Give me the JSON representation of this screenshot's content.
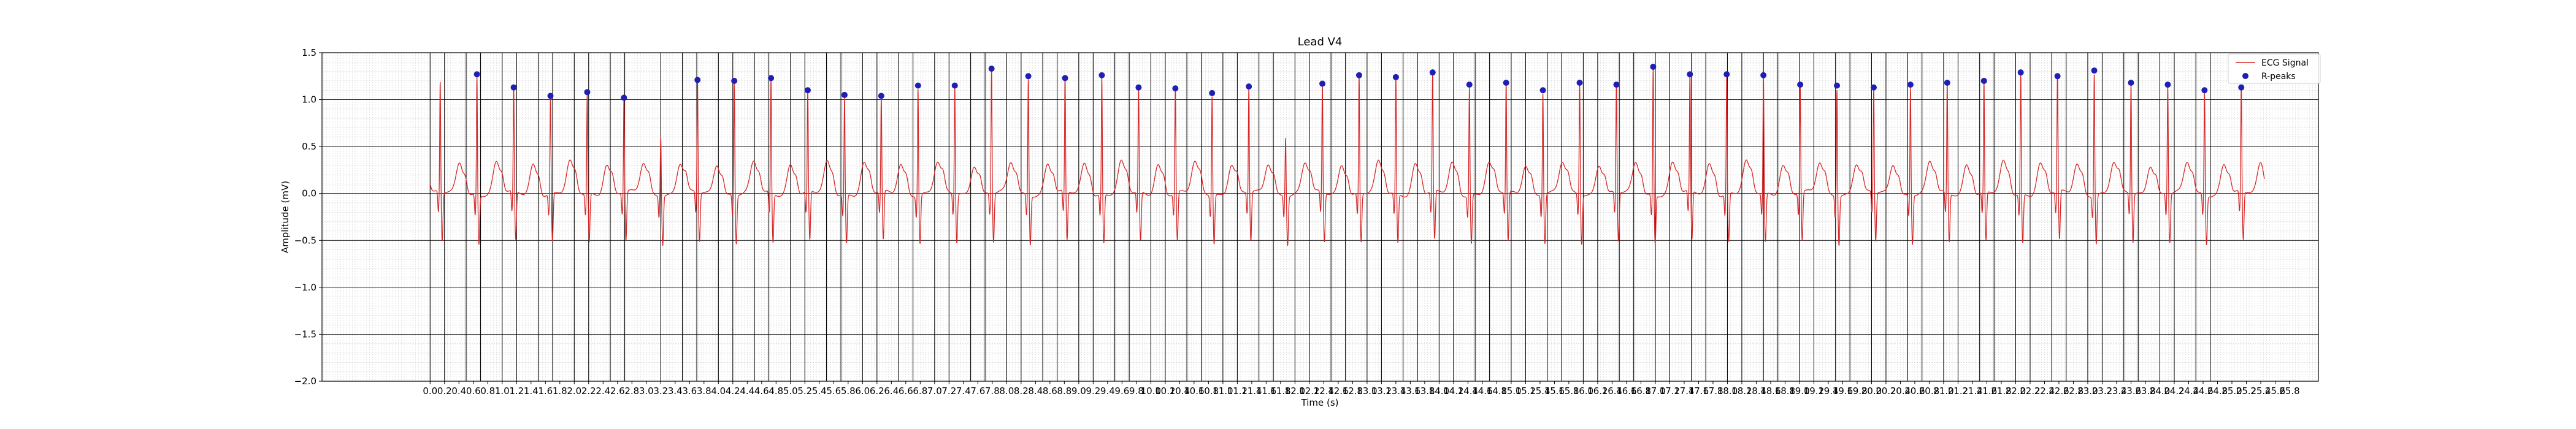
{
  "chart_data": {
    "type": "line",
    "title": "Lead V4",
    "xlabel": "Time (s)",
    "ylabel": "Amplitude (mV)",
    "xlim": [
      -1.5,
      26.2
    ],
    "ylim": [
      -2.0,
      1.5
    ],
    "x_tick_step": 0.2,
    "x_tick_max": 25.8,
    "y_ticks": [
      -2.0,
      -1.5,
      -1.0,
      -0.5,
      0.0,
      0.5,
      1.0,
      1.5
    ],
    "x_tick_labels": [
      "0.0",
      "0.2",
      "0.4",
      "0.6",
      "0.8",
      "1.0",
      "1.2",
      "1.4",
      "1.6",
      "1.8",
      "2.0",
      "2.2",
      "2.4",
      "2.6",
      "2.8",
      "3.0",
      "3.2",
      "3.4",
      "3.6",
      "3.8",
      "4.0",
      "4.2",
      "4.4",
      "4.6",
      "4.8",
      "5.0",
      "5.2",
      "5.4",
      "5.6",
      "5.8",
      "6.0",
      "6.2",
      "6.4",
      "6.6",
      "6.8",
      "7.0",
      "7.2",
      "7.4",
      "7.6",
      "7.8",
      "8.0",
      "8.2",
      "8.4",
      "8.6",
      "8.8",
      "9.0",
      "9.2",
      "9.4",
      "9.6",
      "9.8",
      "10.0",
      "10.2",
      "10.4",
      "10.6",
      "10.8",
      "11.0",
      "11.2",
      "11.4",
      "11.6",
      "11.8",
      "12.0",
      "12.2",
      "12.4",
      "12.6",
      "12.8",
      "13.0",
      "13.2",
      "13.4",
      "13.6",
      "13.8",
      "14.0",
      "14.2",
      "14.4",
      "14.6",
      "14.8",
      "15.0",
      "15.2",
      "15.4",
      "15.6",
      "15.8",
      "16.0",
      "16.2",
      "16.4",
      "16.6",
      "16.8",
      "17.0",
      "17.2",
      "17.4",
      "17.6",
      "17.8",
      "18.0",
      "18.2",
      "18.4",
      "18.6",
      "18.8",
      "19.0",
      "19.2",
      "19.4",
      "19.6",
      "19.8",
      "20.0",
      "20.2",
      "20.4",
      "20.6",
      "20.8",
      "21.0",
      "21.2",
      "21.4",
      "21.6",
      "21.8",
      "22.0",
      "22.2",
      "22.4",
      "22.6",
      "22.8",
      "23.0",
      "23.2",
      "23.4",
      "23.6",
      "23.8",
      "24.0",
      "24.2",
      "24.4",
      "24.6",
      "24.8",
      "25.0",
      "25.2",
      "25.4",
      "25.6",
      "25.8"
    ],
    "y_tick_labels": [
      "−2.0",
      "−1.5",
      "−1.0",
      "−0.5",
      "0.0",
      "0.5",
      "1.0",
      "1.5"
    ],
    "grid": true,
    "legend": {
      "placement": "top-right",
      "entries": [
        "ECG Signal",
        "R-peaks"
      ]
    },
    "colors": {
      "signal": "#d62728",
      "peaks": "#1f1fb4",
      "major_grid": "#000000",
      "minor_grid": "#bbbbbb"
    },
    "vertical_lines_x": [
      0.0,
      0.2,
      0.5,
      0.7,
      1.0,
      1.2,
      1.5,
      1.7,
      2.0,
      2.2,
      2.5,
      2.7,
      3.2,
      3.5,
      3.7,
      4.0,
      4.2,
      4.5,
      4.7,
      5.0,
      5.2,
      5.5,
      5.7,
      6.0,
      6.2,
      6.5,
      6.7,
      7.0,
      7.2,
      7.5,
      7.7,
      8.0,
      8.2,
      8.5,
      8.7,
      9.0,
      9.2,
      9.5,
      9.7,
      10.0,
      10.2,
      10.5,
      10.7,
      11.0,
      11.2,
      11.5,
      11.7,
      12.0,
      12.2,
      12.5,
      12.7,
      13.0,
      13.2,
      13.5,
      13.7,
      14.0,
      14.2,
      14.5,
      14.7,
      15.0,
      15.2,
      15.5,
      15.7,
      16.0,
      16.2,
      16.5,
      16.7,
      17.0,
      17.2,
      17.5,
      17.7,
      18.0,
      18.2,
      18.5,
      18.7,
      19.0,
      19.2,
      19.5,
      19.7,
      20.0,
      20.2,
      20.5,
      20.7,
      21.0,
      21.2,
      21.5,
      21.7,
      22.0,
      22.2,
      22.5,
      22.7,
      23.0,
      23.2,
      23.5,
      23.7,
      24.0,
      24.2,
      24.5,
      24.7
    ],
    "series": [
      {
        "name": "ECG Signal",
        "kind": "line",
        "beats": [
          {
            "t": 0.14,
            "r": 1.18
          },
          {
            "t": 0.65,
            "r": 1.27
          },
          {
            "t": 1.16,
            "r": 1.13
          },
          {
            "t": 1.67,
            "r": 1.04
          },
          {
            "t": 2.18,
            "r": 1.08
          },
          {
            "t": 2.69,
            "r": 1.02
          },
          {
            "t": 3.2,
            "r": 0.66
          },
          {
            "t": 3.71,
            "r": 1.21
          },
          {
            "t": 4.22,
            "r": 1.2
          },
          {
            "t": 4.73,
            "r": 1.23
          },
          {
            "t": 5.24,
            "r": 1.1
          },
          {
            "t": 5.75,
            "r": 1.05
          },
          {
            "t": 6.26,
            "r": 1.04
          },
          {
            "t": 6.77,
            "r": 1.15
          },
          {
            "t": 7.28,
            "r": 1.15
          },
          {
            "t": 7.79,
            "r": 1.33
          },
          {
            "t": 8.3,
            "r": 1.25
          },
          {
            "t": 8.81,
            "r": 1.23
          },
          {
            "t": 9.32,
            "r": 1.26
          },
          {
            "t": 9.83,
            "r": 1.13
          },
          {
            "t": 10.34,
            "r": 1.12
          },
          {
            "t": 10.85,
            "r": 1.07
          },
          {
            "t": 11.36,
            "r": 1.14
          },
          {
            "t": 11.87,
            "r": 0.64
          },
          {
            "t": 12.38,
            "r": 1.17
          },
          {
            "t": 12.89,
            "r": 1.26
          },
          {
            "t": 13.4,
            "r": 1.24
          },
          {
            "t": 13.91,
            "r": 1.29
          },
          {
            "t": 14.42,
            "r": 1.16
          },
          {
            "t": 14.93,
            "r": 1.18
          },
          {
            "t": 15.44,
            "r": 1.1
          },
          {
            "t": 15.95,
            "r": 1.18
          },
          {
            "t": 16.46,
            "r": 1.16
          },
          {
            "t": 16.97,
            "r": 1.35
          },
          {
            "t": 17.48,
            "r": 1.27
          },
          {
            "t": 17.99,
            "r": 1.27
          },
          {
            "t": 18.5,
            "r": 1.26
          },
          {
            "t": 19.01,
            "r": 1.16
          },
          {
            "t": 19.52,
            "r": 1.15
          },
          {
            "t": 20.03,
            "r": 1.13
          },
          {
            "t": 20.54,
            "r": 1.16
          },
          {
            "t": 21.05,
            "r": 1.18
          },
          {
            "t": 21.56,
            "r": 1.2
          },
          {
            "t": 22.07,
            "r": 1.29
          },
          {
            "t": 22.58,
            "r": 1.25
          },
          {
            "t": 23.09,
            "r": 1.31
          },
          {
            "t": 23.6,
            "r": 1.18
          },
          {
            "t": 24.11,
            "r": 1.16
          },
          {
            "t": 24.62,
            "r": 1.1
          },
          {
            "t": 25.13,
            "r": 1.13
          }
        ],
        "x_end": 25.45
      },
      {
        "name": "R-peaks",
        "kind": "scatter",
        "x": [
          0.65,
          1.16,
          1.67,
          2.18,
          2.69,
          3.71,
          4.22,
          4.73,
          5.24,
          5.75,
          6.26,
          6.77,
          7.28,
          7.79,
          8.3,
          8.81,
          9.32,
          9.83,
          10.34,
          10.85,
          11.36,
          12.38,
          12.89,
          13.4,
          13.91,
          14.42,
          14.93,
          15.44,
          15.95,
          16.46,
          16.97,
          17.48,
          17.99,
          18.5,
          19.01,
          19.52,
          20.03,
          20.54,
          21.05,
          21.56,
          22.07,
          22.58,
          23.09,
          23.6,
          24.11,
          24.62,
          25.13
        ],
        "y": [
          1.27,
          1.13,
          1.04,
          1.08,
          1.02,
          1.21,
          1.2,
          1.23,
          1.1,
          1.05,
          1.04,
          1.15,
          1.15,
          1.33,
          1.25,
          1.23,
          1.26,
          1.13,
          1.12,
          1.07,
          1.14,
          1.17,
          1.26,
          1.24,
          1.29,
          1.16,
          1.18,
          1.1,
          1.18,
          1.16,
          1.35,
          1.27,
          1.27,
          1.26,
          1.16,
          1.15,
          1.13,
          1.16,
          1.18,
          1.2,
          1.29,
          1.25,
          1.31,
          1.18,
          1.16,
          1.1,
          1.13
        ]
      }
    ]
  }
}
